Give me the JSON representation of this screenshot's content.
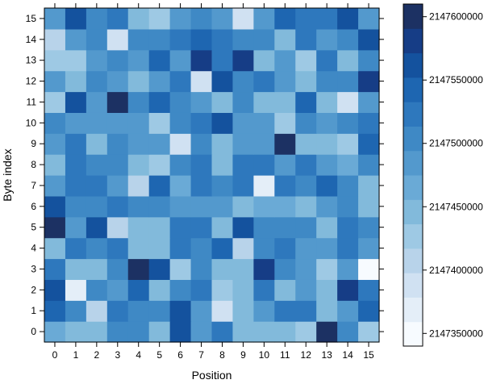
{
  "chart_data": {
    "type": "heatmap",
    "title": "",
    "xlabel": "Position",
    "ylabel": "Byte index",
    "x_ticks": [
      "0",
      "1",
      "2",
      "3",
      "4",
      "5",
      "6",
      "7",
      "8",
      "9",
      "10",
      "11",
      "12",
      "13",
      "14",
      "15"
    ],
    "y_ticks": [
      "0",
      "1",
      "2",
      "3",
      "4",
      "5",
      "6",
      "7",
      "8",
      "9",
      "10",
      "11",
      "12",
      "13",
      "14",
      "15"
    ],
    "value_range": [
      2147340000,
      2147610000
    ],
    "colorbar": {
      "label_values": [
        2147350000,
        2147400000,
        2147450000,
        2147500000,
        2147550000,
        2147600000
      ],
      "labels": [
        "2147350000",
        "2147400000",
        "2147450000",
        "2147500000",
        "2147550000",
        "2147600000"
      ],
      "levels": 14
    },
    "palette": [
      "#f7fbff",
      "#e4eef8",
      "#d0e1f2",
      "#b8d3ea",
      "#9ec9e4",
      "#82badb",
      "#6aaad6",
      "#5399cd",
      "#3f89c5",
      "#2e78bd",
      "#1e66b1",
      "#14529e",
      "#163d86",
      "#1c3163"
    ],
    "z_comment": "rows listed from byte index 0 (bottom) to 15 (top); values = position 0..15",
    "z": [
      [
        2147462000,
        2147438000,
        2147438000,
        2147498000,
        2147508000,
        2147438000,
        2147565000,
        2147475000,
        2147518000,
        2147455000,
        2147455000,
        2147455000,
        2147418000,
        2147610000,
        2147498000,
        2147418000
      ],
      [
        2147550000,
        2147500000,
        2147400000,
        2147518000,
        2147508000,
        2147508000,
        2147565000,
        2147475000,
        2147388000,
        2147455000,
        2147475000,
        2147518000,
        2147518000,
        2147455000,
        2147475000,
        2147540000
      ],
      [
        2147560000,
        2147370000,
        2147500000,
        2147475000,
        2147550000,
        2147455000,
        2147500000,
        2147528000,
        2147418000,
        2147455000,
        2147518000,
        2147455000,
        2147475000,
        2147455000,
        2147588000,
        2147528000
      ],
      [
        2147528000,
        2147440000,
        2147440000,
        2147500000,
        2147610000,
        2147560000,
        2147418000,
        2147500000,
        2147455000,
        2147455000,
        2147578000,
        2147500000,
        2147475000,
        2147418000,
        2147475000,
        2147350000
      ],
      [
        2147455000,
        2147528000,
        2147508000,
        2147518000,
        2147455000,
        2147455000,
        2147528000,
        2147500000,
        2147540000,
        2147400000,
        2147500000,
        2147518000,
        2147475000,
        2147475000,
        2147528000,
        2147475000
      ],
      [
        2147598000,
        2147475000,
        2147560000,
        2147410000,
        2147455000,
        2147455000,
        2147528000,
        2147518000,
        2147455000,
        2147570000,
        2147500000,
        2147498000,
        2147500000,
        2147455000,
        2147528000,
        2147498000
      ],
      [
        2147560000,
        2147500000,
        2147500000,
        2147528000,
        2147508000,
        2147508000,
        2147480000,
        2147480000,
        2147480000,
        2147445000,
        2147465000,
        2147465000,
        2147445000,
        2147475000,
        2147500000,
        2147455000
      ],
      [
        2147475000,
        2147518000,
        2147518000,
        2147480000,
        2147410000,
        2147540000,
        2147465000,
        2147518000,
        2147500000,
        2147518000,
        2147370000,
        2147518000,
        2147500000,
        2147540000,
        2147508000,
        2147445000
      ],
      [
        2147455000,
        2147518000,
        2147508000,
        2147508000,
        2147440000,
        2147430000,
        2147500000,
        2147518000,
        2147455000,
        2147518000,
        2147518000,
        2147475000,
        2147518000,
        2147475000,
        2147465000,
        2147500000
      ],
      [
        2147475000,
        2147528000,
        2147455000,
        2147498000,
        2147475000,
        2147475000,
        2147385000,
        2147500000,
        2147455000,
        2147475000,
        2147475000,
        2147605000,
        2147455000,
        2147455000,
        2147418000,
        2147540000
      ],
      [
        2147508000,
        2147475000,
        2147475000,
        2147475000,
        2147475000,
        2147420000,
        2147500000,
        2147518000,
        2147560000,
        2147475000,
        2147475000,
        2147418000,
        2147500000,
        2147475000,
        2147508000,
        2147518000
      ],
      [
        2147430000,
        2147560000,
        2147475000,
        2147600000,
        2147500000,
        2147540000,
        2147500000,
        2147475000,
        2147440000,
        2147500000,
        2147440000,
        2147440000,
        2147540000,
        2147440000,
        2147385000,
        2147475000
      ],
      [
        2147475000,
        2147455000,
        2147500000,
        2147475000,
        2147455000,
        2147475000,
        2147518000,
        2147385000,
        2147560000,
        2147508000,
        2147528000,
        2147475000,
        2147455000,
        2147498000,
        2147498000,
        2147578000
      ],
      [
        2147420000,
        2147420000,
        2147475000,
        2147498000,
        2147475000,
        2147550000,
        2147475000,
        2147588000,
        2147528000,
        2147588000,
        2147455000,
        2147475000,
        2147430000,
        2147528000,
        2147455000,
        2147498000
      ],
      [
        2147408000,
        2147475000,
        2147500000,
        2147380000,
        2147508000,
        2147508000,
        2147518000,
        2147540000,
        2147518000,
        2147500000,
        2147500000,
        2147440000,
        2147528000,
        2147475000,
        2147498000,
        2147560000
      ],
      [
        2147475000,
        2147565000,
        2147500000,
        2147518000,
        2147455000,
        2147420000,
        2147475000,
        2147500000,
        2147475000,
        2147388000,
        2147475000,
        2147550000,
        2147518000,
        2147518000,
        2147560000,
        2147475000
      ]
    ]
  }
}
